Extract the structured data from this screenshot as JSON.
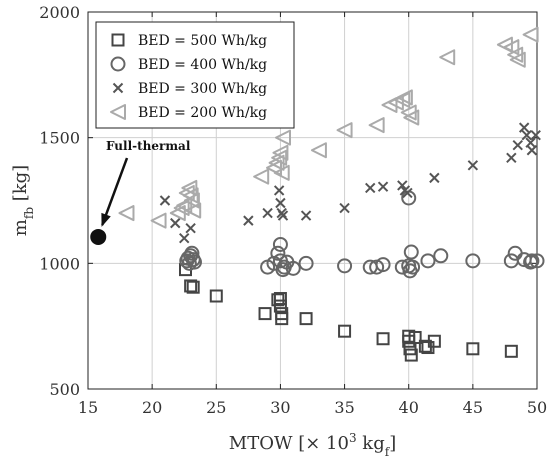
{
  "chart_data": {
    "type": "scatter",
    "title": "",
    "xlabel": "MTOW [× 10",
    "xlabel_sup": "3",
    "xlabel_unit": " kg",
    "xlabel_sub": "f",
    "xlabel_close": "]",
    "ylabel": "m",
    "ylabel_sub": "fb",
    "ylabel_unit": " [kg]",
    "xlim": [
      15,
      50
    ],
    "ylim": [
      500,
      2000
    ],
    "xticks": [
      15,
      20,
      25,
      30,
      35,
      40,
      45,
      50
    ],
    "yticks": [
      500,
      1000,
      1500,
      2000
    ],
    "xtick_labels": [
      "15",
      "20",
      "25",
      "30",
      "35",
      "40",
      "45",
      "50"
    ],
    "ytick_labels": [
      "500",
      "1000",
      "1500",
      "2000"
    ],
    "grid": true,
    "legend_position": "top-left",
    "annotation": {
      "text": "Full-thermal",
      "point": [
        15.8,
        1105
      ]
    },
    "series": [
      {
        "name": "BED = 500 Wh/kg",
        "marker": "square",
        "color": "#444444",
        "points": [
          [
            22.6,
            975
          ],
          [
            23.0,
            910
          ],
          [
            23.2,
            905
          ],
          [
            25.0,
            870
          ],
          [
            28.8,
            800
          ],
          [
            29.8,
            855
          ],
          [
            30.0,
            860
          ],
          [
            30.0,
            830
          ],
          [
            30.1,
            800
          ],
          [
            30.1,
            780
          ],
          [
            32.0,
            780
          ],
          [
            35.0,
            730
          ],
          [
            38.0,
            700
          ],
          [
            40.0,
            710
          ],
          [
            40.0,
            690
          ],
          [
            40.1,
            660
          ],
          [
            40.2,
            635
          ],
          [
            40.5,
            705
          ],
          [
            41.3,
            670
          ],
          [
            41.5,
            665
          ],
          [
            42.0,
            690
          ],
          [
            45.0,
            660
          ],
          [
            48.0,
            650
          ]
        ]
      },
      {
        "name": "BED = 400 Wh/kg",
        "marker": "circle",
        "color": "#666666",
        "points": [
          [
            22.7,
            1010
          ],
          [
            22.8,
            1020
          ],
          [
            22.9,
            1000
          ],
          [
            23.0,
            1030
          ],
          [
            23.1,
            1040
          ],
          [
            23.2,
            1015
          ],
          [
            23.3,
            1005
          ],
          [
            29.0,
            985
          ],
          [
            29.5,
            1000
          ],
          [
            29.8,
            1040
          ],
          [
            30.0,
            1075
          ],
          [
            30.0,
            1010
          ],
          [
            30.2,
            975
          ],
          [
            30.3,
            985
          ],
          [
            30.5,
            1005
          ],
          [
            31.0,
            980
          ],
          [
            32.0,
            1000
          ],
          [
            35.0,
            990
          ],
          [
            37.0,
            985
          ],
          [
            37.5,
            985
          ],
          [
            38.0,
            995
          ],
          [
            39.5,
            985
          ],
          [
            40.0,
            1260
          ],
          [
            40.0,
            990
          ],
          [
            40.1,
            970
          ],
          [
            40.2,
            1045
          ],
          [
            40.3,
            985
          ],
          [
            41.5,
            1010
          ],
          [
            42.5,
            1030
          ],
          [
            45.0,
            1010
          ],
          [
            48.0,
            1010
          ],
          [
            48.3,
            1040
          ],
          [
            49.0,
            1015
          ],
          [
            49.5,
            1005
          ],
          [
            49.6,
            1010
          ],
          [
            50.0,
            1010
          ]
        ]
      },
      {
        "name": "BED = 300 Wh/kg",
        "marker": "x",
        "color": "#555555",
        "points": [
          [
            21.0,
            1250
          ],
          [
            21.8,
            1160
          ],
          [
            22.5,
            1100
          ],
          [
            23.0,
            1140
          ],
          [
            27.5,
            1170
          ],
          [
            29.0,
            1200
          ],
          [
            29.9,
            1290
          ],
          [
            30.0,
            1240
          ],
          [
            30.1,
            1200
          ],
          [
            30.2,
            1190
          ],
          [
            32.0,
            1190
          ],
          [
            35.0,
            1220
          ],
          [
            37.0,
            1300
          ],
          [
            38.0,
            1305
          ],
          [
            39.5,
            1310
          ],
          [
            39.7,
            1290
          ],
          [
            39.9,
            1280
          ],
          [
            42.0,
            1340
          ],
          [
            45.0,
            1390
          ],
          [
            48.0,
            1420
          ],
          [
            48.5,
            1470
          ],
          [
            49.0,
            1540
          ],
          [
            49.2,
            1510
          ],
          [
            49.5,
            1480
          ],
          [
            49.6,
            1450
          ],
          [
            49.9,
            1510
          ]
        ]
      },
      {
        "name": "BED = 200 Wh/kg",
        "marker": "triangle-left",
        "color": "#aaaaaa",
        "points": [
          [
            18.0,
            1200
          ],
          [
            20.5,
            1170
          ],
          [
            22.0,
            1200
          ],
          [
            22.3,
            1220
          ],
          [
            22.5,
            1230
          ],
          [
            22.7,
            1280
          ],
          [
            22.9,
            1300
          ],
          [
            23.0,
            1270
          ],
          [
            23.1,
            1250
          ],
          [
            23.2,
            1210
          ],
          [
            28.5,
            1345
          ],
          [
            29.5,
            1380
          ],
          [
            29.7,
            1400
          ],
          [
            29.9,
            1420
          ],
          [
            30.0,
            1440
          ],
          [
            30.1,
            1360
          ],
          [
            30.2,
            1500
          ],
          [
            33.0,
            1450
          ],
          [
            35.0,
            1530
          ],
          [
            37.5,
            1550
          ],
          [
            38.5,
            1630
          ],
          [
            39.0,
            1640
          ],
          [
            39.5,
            1650
          ],
          [
            39.7,
            1660
          ],
          [
            40.0,
            1600
          ],
          [
            40.2,
            1580
          ],
          [
            43.0,
            1820
          ],
          [
            47.5,
            1870
          ],
          [
            48.0,
            1860
          ],
          [
            48.3,
            1830
          ],
          [
            48.5,
            1810
          ],
          [
            49.5,
            1910
          ]
        ]
      }
    ]
  }
}
